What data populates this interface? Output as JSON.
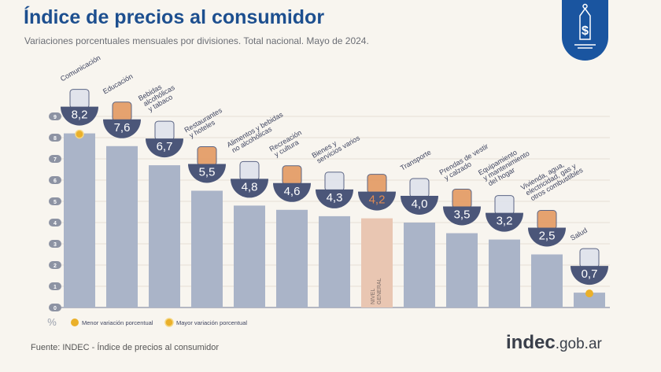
{
  "header": {
    "title": "Índice de precios al consumidor",
    "subtitle": "Variaciones porcentuales mensuales por divisiones. Total nacional. Mayo de 2024."
  },
  "chart_data": {
    "type": "bar",
    "title": "Índice de precios al consumidor",
    "subtitle": "Variaciones porcentuales mensuales por divisiones. Total nacional. Mayo de 2024.",
    "ylabel": "%",
    "ylim": [
      0,
      9
    ],
    "yticks": [
      "0",
      "1",
      "2",
      "3",
      "4",
      "5",
      "6",
      "7",
      "8",
      "9"
    ],
    "grid": true,
    "categories": [
      [
        "Comunicación"
      ],
      [
        "Educación"
      ],
      [
        "Bebidas",
        "alcohólicas",
        "y tabaco"
      ],
      [
        "Restaurantes",
        "y hoteles"
      ],
      [
        "Alimentos y bebidas",
        "no alcohólicas"
      ],
      [
        "Recreación",
        "y cultura"
      ],
      [
        "Bienes y",
        "servicios varios"
      ],
      [
        "NIVEL",
        "GENERAL"
      ],
      [
        "Transporte"
      ],
      [
        "Prendas de vestir",
        "y calzado"
      ],
      [
        "Equipamiento",
        "y mantenimiento",
        "del hogar"
      ],
      [
        "Vivienda, agua,",
        "electricidad, gas y",
        "otros combustibles"
      ],
      [
        "Salud"
      ]
    ],
    "values": [
      8.2,
      7.6,
      6.7,
      5.5,
      4.8,
      4.6,
      4.3,
      4.2,
      4.0,
      3.5,
      3.2,
      2.5,
      0.7
    ],
    "value_labels": [
      "8,2",
      "7,6",
      "6,7",
      "5,5",
      "4,8",
      "4,6",
      "4,3",
      "4,2",
      "4,0",
      "3,5",
      "3,2",
      "2,5",
      "0,7"
    ],
    "highlight_index": 7,
    "max_index": 0,
    "min_index": 12,
    "legend": {
      "placement": "bottom-left",
      "items": [
        "Menor variación porcentual",
        "Mayor variación porcentual"
      ]
    },
    "colors": {
      "bar": "#aab4c8",
      "highlight_bar": "#e9c6b2",
      "bowl": "#4b5679",
      "highlight_value": "#e08a52",
      "marker": "#eab02a"
    }
  },
  "footer": {
    "source": "Fuente: INDEC - Índice de precios al consumidor",
    "brand_bold": "indec",
    "brand_rest": ".gob.ar"
  },
  "icons": {
    "badge": "price-tag-dollar-icon"
  }
}
